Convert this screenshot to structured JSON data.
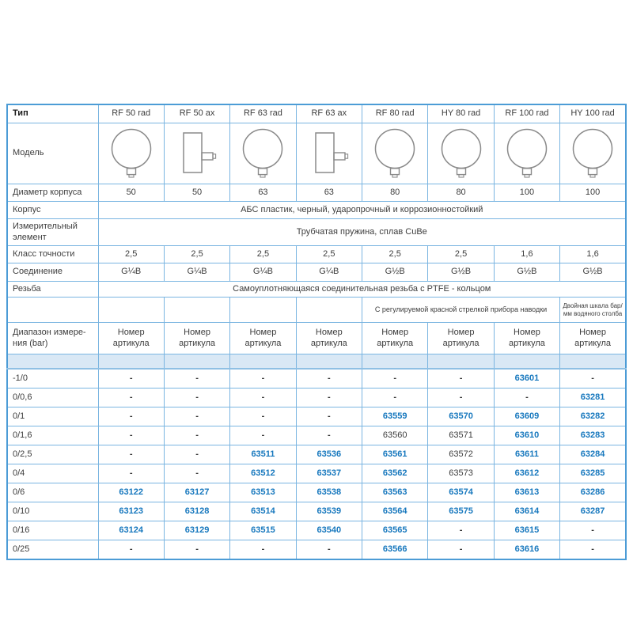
{
  "table": {
    "columns": [
      "RF 50 rad",
      "RF 50 ax",
      "RF 63 rad",
      "RF 63 ax",
      "RF 80 rad",
      "HY 80 rad",
      "RF 100 rad",
      "HY 100 rad"
    ],
    "column_gauge_icons": [
      "gauge-radial-icon",
      "gauge-axial-icon",
      "gauge-radial-icon",
      "gauge-axial-icon",
      "gauge-radial-icon",
      "gauge-radial-icon",
      "gauge-radial-icon",
      "gauge-radial-icon"
    ],
    "rows": {
      "type_label": "Тип",
      "model_label": "Модель",
      "diameter_label": "Диаметр корпуса",
      "diameters": [
        "50",
        "50",
        "63",
        "63",
        "80",
        "80",
        "100",
        "100"
      ],
      "body_label": "Корпус",
      "body_value": "АБС пластик, черный, ударопрочный и коррозионностойкий",
      "element_label": "Измерительный\nэлемент",
      "element_value": "Трубчатая пружина, сплав CuBe",
      "accuracy_label": "Класс точности",
      "accuracy": [
        "2,5",
        "2,5",
        "2,5",
        "2,5",
        "2,5",
        "2,5",
        "1,6",
        "1,6"
      ],
      "connection_label": "Соединение",
      "connections": [
        "G¼B",
        "G¼B",
        "G¼B",
        "G¼B",
        "G½B",
        "G½B",
        "G½B",
        "G½B"
      ],
      "thread_label": "Резьба",
      "thread_value": "Самоуплотняющаяся соединительная резьба с PTFE - кольцом",
      "note_red_pointer": "С регулируемой красной стрелкой прибора наводки",
      "note_dual_scale": "Двойная шкала бар/\nмм водяного столба",
      "range_label": "Диапазон измере-\nния (bar)",
      "article_header": "Номер\nартикула"
    },
    "ranges": [
      {
        "range": "-1/0",
        "values": [
          "-",
          "-",
          "-",
          "-",
          "-",
          "-",
          "63601",
          "-"
        ]
      },
      {
        "range": "0/0,6",
        "values": [
          "-",
          "-",
          "-",
          "-",
          "-",
          "-",
          "-",
          "63281"
        ]
      },
      {
        "range": "0/1",
        "values": [
          "-",
          "-",
          "-",
          "-",
          "63559",
          "63570",
          "63609",
          "63282"
        ]
      },
      {
        "range": "0/1,6",
        "values": [
          "-",
          "-",
          "-",
          "-",
          "63560",
          "63571",
          "63610",
          "63283"
        ]
      },
      {
        "range": "0/2,5",
        "values": [
          "-",
          "-",
          "63511",
          "63536",
          "63561",
          "63572",
          "63611",
          "63284"
        ]
      },
      {
        "range": "0/4",
        "values": [
          "-",
          "-",
          "63512",
          "63537",
          "63562",
          "63573",
          "63612",
          "63285"
        ]
      },
      {
        "range": "0/6",
        "values": [
          "63122",
          "63127",
          "63513",
          "63538",
          "63563",
          "63574",
          "63613",
          "63286"
        ]
      },
      {
        "range": "0/10",
        "values": [
          "63123",
          "63128",
          "63514",
          "63539",
          "63564",
          "63575",
          "63614",
          "63287"
        ]
      },
      {
        "range": "0/16",
        "values": [
          "63124",
          "63129",
          "63515",
          "63540",
          "63565",
          "-",
          "63615",
          "-"
        ]
      },
      {
        "range": "0/25",
        "values": [
          "-",
          "-",
          "-",
          "-",
          "63566",
          "-",
          "63616",
          "-"
        ]
      }
    ],
    "plain_dark_numbers": [
      "63560",
      "63571",
      "63572",
      "63573"
    ],
    "colors": {
      "accent_number_blue": "#1778be",
      "grid_blue": "#7ab5e1",
      "outer_border_blue": "#4c9cd6",
      "shaded_row_fill": "#d9e8f5",
      "plain_text": "#3d3d3d"
    }
  }
}
